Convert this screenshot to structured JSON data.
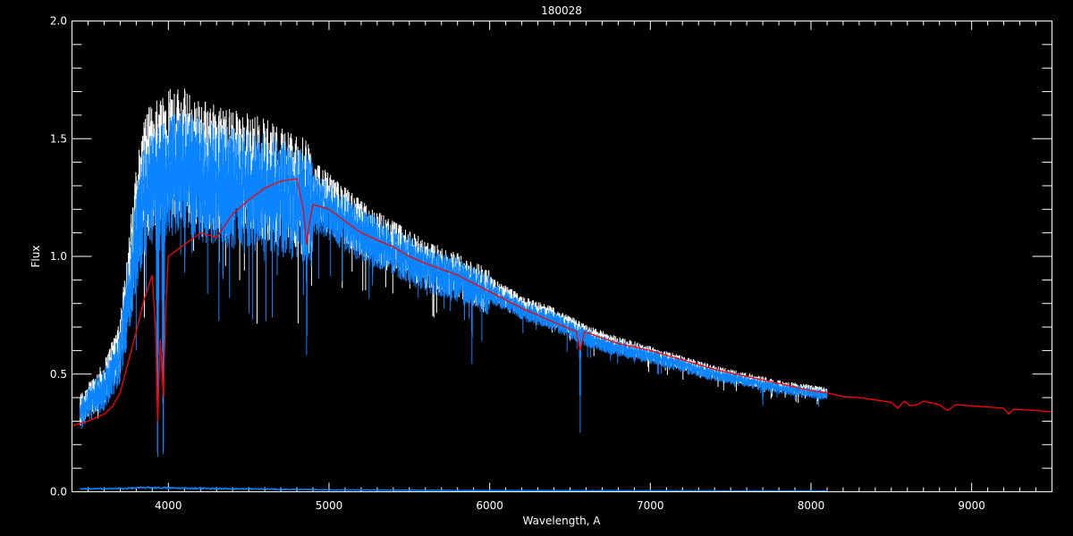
{
  "chart_data": {
    "type": "line",
    "title": "180028",
    "xlabel": "Wavelength, A",
    "ylabel": "Flux",
    "xlim": [
      3400,
      9500
    ],
    "ylim": [
      0.0,
      2.0
    ],
    "x_ticks": [
      4000,
      5000,
      6000,
      7000,
      8000,
      9000
    ],
    "x_tick_labels": [
      "4000",
      "5000",
      "6000",
      "7000",
      "8000",
      "9000"
    ],
    "y_ticks": [
      0.0,
      0.5,
      1.0,
      1.5,
      2.0
    ],
    "y_tick_labels": [
      "0.0",
      "0.5",
      "1.0",
      "1.5",
      "2.0"
    ],
    "x_minor_step": 100,
    "y_minor_step": 0.1,
    "grid": false,
    "background": "#000000",
    "series": [
      {
        "role": "observed spectrum (white)",
        "color": "#ffffff",
        "x": [
          3450,
          3500,
          3600,
          3700,
          3800,
          3850,
          3900,
          4000,
          4100,
          4200,
          4400,
          4600,
          4800,
          5000,
          5200,
          5400,
          5600,
          5800,
          6000,
          6200,
          6400,
          6600,
          6800,
          7000,
          7200,
          7400,
          7600,
          7800,
          8000,
          8100
        ],
        "y": [
          0.38,
          0.42,
          0.5,
          0.68,
          1.25,
          1.45,
          1.5,
          1.58,
          1.55,
          1.52,
          1.47,
          1.44,
          1.38,
          1.28,
          1.17,
          1.09,
          1.01,
          0.96,
          0.89,
          0.81,
          0.76,
          0.69,
          0.64,
          0.6,
          0.56,
          0.52,
          0.49,
          0.46,
          0.44,
          0.43
        ]
      },
      {
        "role": "observed spectrum (blue)",
        "color": "#0a84ff",
        "x": [
          3450,
          3500,
          3600,
          3700,
          3800,
          3850,
          3900,
          4000,
          4100,
          4200,
          4400,
          4600,
          4800,
          5000,
          5200,
          5400,
          5600,
          5800,
          6000,
          6200,
          6400,
          6600,
          6800,
          7000,
          7200,
          7400,
          7600,
          7800,
          8000,
          8100
        ],
        "y": [
          0.35,
          0.4,
          0.47,
          0.62,
          1.15,
          1.35,
          1.4,
          1.48,
          1.46,
          1.44,
          1.4,
          1.38,
          1.33,
          1.24,
          1.14,
          1.07,
          0.99,
          0.94,
          0.87,
          0.79,
          0.74,
          0.67,
          0.62,
          0.59,
          0.55,
          0.51,
          0.48,
          0.45,
          0.43,
          0.42
        ],
        "absorption_lines": [
          {
            "x": 3933,
            "y": 0.05
          },
          {
            "x": 3968,
            "y": 0.06
          },
          {
            "x": 4102,
            "y": 0.85
          },
          {
            "x": 4340,
            "y": 0.8
          },
          {
            "x": 4861,
            "y": 0.47
          },
          {
            "x": 5270,
            "y": 0.85
          },
          {
            "x": 5890,
            "y": 0.53
          },
          {
            "x": 6563,
            "y": 0.25
          },
          {
            "x": 7700,
            "y": 0.36
          }
        ]
      },
      {
        "role": "model spectrum",
        "color": "#ff0000",
        "x": [
          3400,
          3500,
          3600,
          3650,
          3700,
          3750,
          3800,
          3850,
          3900,
          3920,
          3933,
          3950,
          3968,
          3985,
          4000,
          4100,
          4200,
          4300,
          4400,
          4500,
          4600,
          4700,
          4800,
          4840,
          4861,
          4880,
          4900,
          5000,
          5100,
          5200,
          5300,
          5400,
          5500,
          5600,
          5800,
          6000,
          6200,
          6400,
          6540,
          6563,
          6590,
          6800,
          7000,
          7200,
          7400,
          7600,
          7800,
          8000,
          8100,
          8200,
          8300,
          8400,
          8500,
          8540,
          8580,
          8620,
          8660,
          8700,
          8800,
          8850,
          8900,
          9000,
          9100,
          9200,
          9230,
          9260,
          9300,
          9400,
          9500
        ],
        "y": [
          0.28,
          0.3,
          0.33,
          0.36,
          0.42,
          0.55,
          0.68,
          0.82,
          0.92,
          0.7,
          0.3,
          0.65,
          0.4,
          0.8,
          1.0,
          1.05,
          1.1,
          1.08,
          1.18,
          1.24,
          1.29,
          1.32,
          1.33,
          1.2,
          1.05,
          1.15,
          1.22,
          1.2,
          1.15,
          1.1,
          1.07,
          1.04,
          1.0,
          0.97,
          0.92,
          0.85,
          0.78,
          0.72,
          0.68,
          0.6,
          0.68,
          0.63,
          0.6,
          0.56,
          0.52,
          0.49,
          0.46,
          0.43,
          0.42,
          0.405,
          0.4,
          0.39,
          0.38,
          0.355,
          0.385,
          0.365,
          0.37,
          0.385,
          0.37,
          0.345,
          0.37,
          0.365,
          0.36,
          0.355,
          0.33,
          0.35,
          0.35,
          0.345,
          0.34
        ]
      },
      {
        "role": "error spectrum",
        "color": "#0a84ff",
        "x": [
          3450,
          3700,
          3900,
          4000,
          4500,
          5000,
          6000,
          7000,
          8100
        ],
        "y": [
          0.012,
          0.014,
          0.018,
          0.016,
          0.012,
          0.008,
          0.005,
          0.004,
          0.003
        ]
      }
    ]
  }
}
